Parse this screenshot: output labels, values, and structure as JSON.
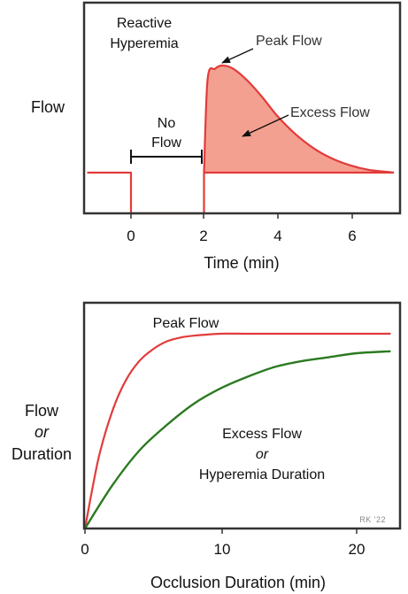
{
  "chart_data": [
    {
      "type": "area",
      "xlabel": "Time (min)",
      "ylabel": "Flow",
      "xlim": [
        -1.2,
        7.3
      ],
      "xticks": [
        0,
        2,
        4,
        6
      ],
      "x_tick_labels": [
        "0",
        "2",
        "4",
        "6"
      ],
      "grid": false,
      "annotations": {
        "title_line1": "Reactive",
        "title_line2": "Hyperemia",
        "peak": "Peak Flow",
        "excess": "Excess Flow",
        "noflow_line1": "No",
        "noflow_line2": "Flow"
      },
      "series": [
        {
          "values_relative": "baseline = 0, occlusion = -1, peak = 2.63",
          "x": [
            -1.2,
            0,
            0,
            2,
            2,
            2.1,
            2.3,
            2.5,
            2.8,
            3.2,
            3.6,
            4.0,
            4.5,
            5.0,
            5.5,
            6.0,
            6.5,
            7.0,
            7.2
          ],
          "y": [
            0,
            0,
            -1,
            -1,
            0,
            2.3,
            2.55,
            2.63,
            2.55,
            2.25,
            1.85,
            1.4,
            0.95,
            0.6,
            0.35,
            0.18,
            0.07,
            0.02,
            0
          ]
        }
      ],
      "baseline": 0,
      "occlusion_interval": [
        0,
        2
      ]
    },
    {
      "type": "line",
      "xlabel": "Occlusion Duration (min)",
      "ylabel_line1": "Flow",
      "ylabel_line2": "or",
      "ylabel_line3": "Duration",
      "xlim": [
        0,
        23
      ],
      "xticks": [
        0,
        10,
        20
      ],
      "x_tick_labels": [
        "0",
        "10",
        "20"
      ],
      "grid": false,
      "series": [
        {
          "name": "Peak Flow",
          "color": "#e23b3b",
          "x": [
            0,
            1,
            2,
            3,
            4,
            5,
            6,
            7,
            8,
            10,
            12,
            15,
            20,
            22.5
          ],
          "y": [
            0,
            0.36,
            0.6,
            0.76,
            0.86,
            0.92,
            0.96,
            0.98,
            0.99,
            1.0,
            1.0,
            1.0,
            1.0,
            1.0
          ]
        },
        {
          "name": "Excess Flow or Hyperemia Duration",
          "color": "#2a7a1f",
          "x": [
            0,
            2,
            4,
            6,
            8,
            10,
            12,
            14,
            16,
            18,
            20,
            22.5
          ],
          "y": [
            0,
            0.22,
            0.4,
            0.53,
            0.64,
            0.72,
            0.78,
            0.83,
            0.86,
            0.88,
            0.9,
            0.91
          ]
        }
      ],
      "annotations": {
        "peak": "Peak Flow",
        "excess_line1": "Excess Flow",
        "excess_line2": "or",
        "excess_line3": "Hyperemia Duration"
      },
      "signature": "RK '22"
    }
  ],
  "colors": {
    "red_line": "#e23b3b",
    "fill": "#f4a090",
    "green_line": "#2a7a1f",
    "frame": "#333333"
  }
}
